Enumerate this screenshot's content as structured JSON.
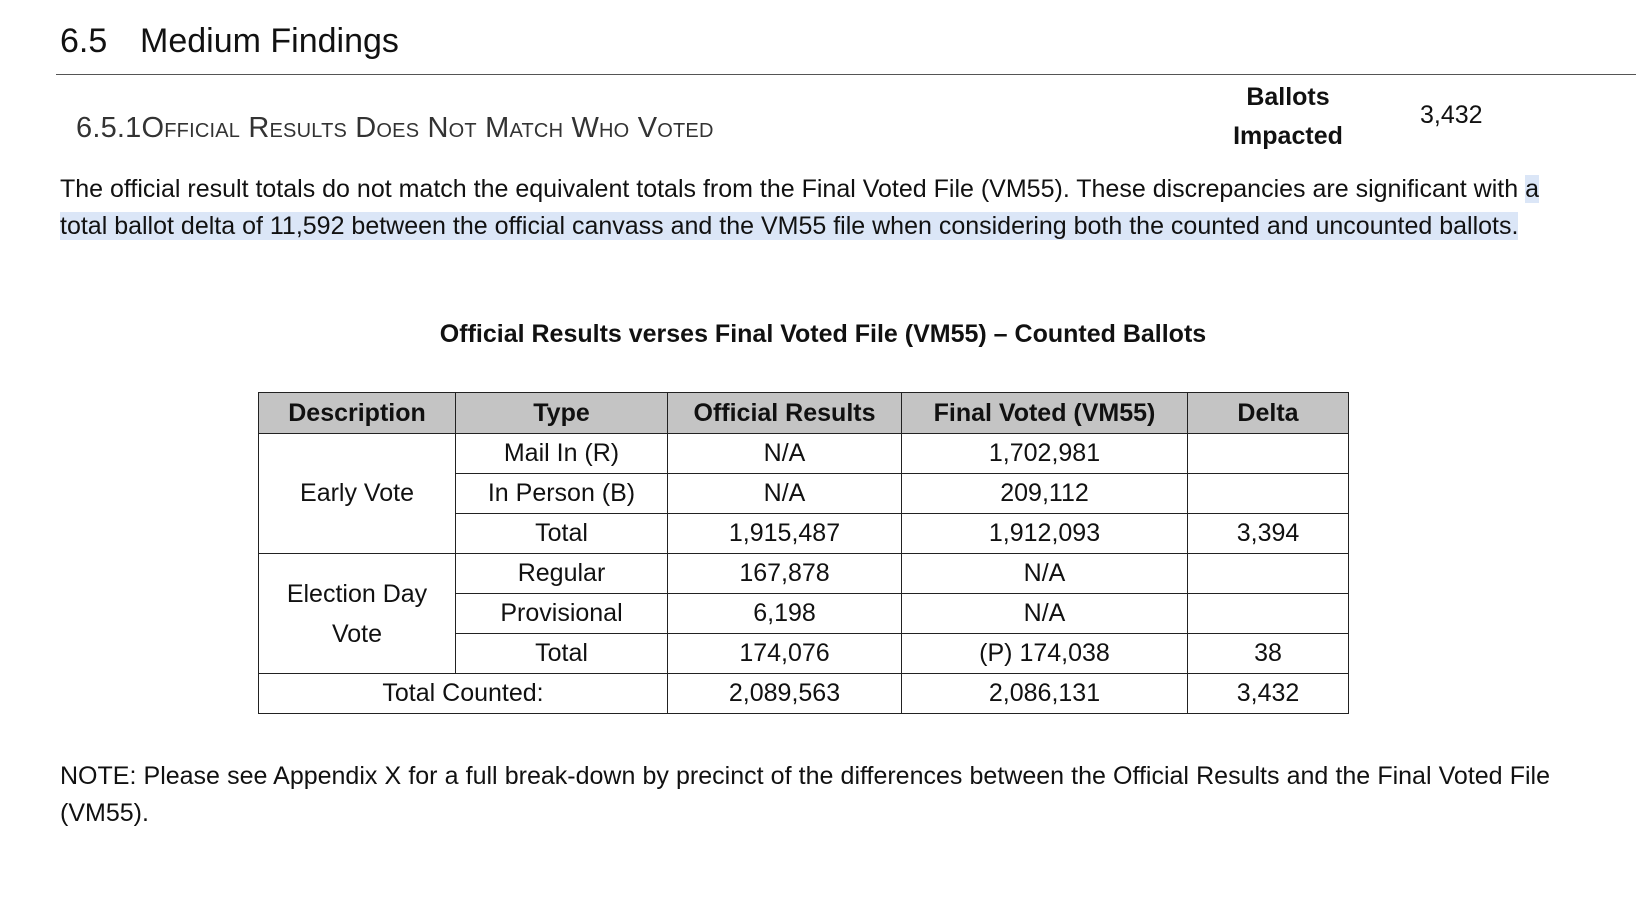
{
  "section": {
    "number": "6.5",
    "title": "Medium Findings"
  },
  "subsection": {
    "number": "6.5.1",
    "title": "Official Results Does Not Match Who Voted"
  },
  "impact": {
    "label_line1": "Ballots",
    "label_line2": "Impacted",
    "value": "3,432"
  },
  "paragraph": {
    "text_plain": "The official result totals do not match the equivalent totals from the Final Voted File (VM55). These discrepancies are significant with ",
    "text_highlighted": "a total ballot delta of 11,592 between the official canvass and the VM55 file when considering both the counted and uncounted ballots."
  },
  "table": {
    "title": "Official Results verses Final Voted File (VM55) – Counted Ballots",
    "headers": [
      "Description",
      "Type",
      "Official Results",
      "Final Voted (VM55)",
      "Delta"
    ],
    "groups": [
      {
        "description": "Early Vote",
        "rows": [
          {
            "type": "Mail In (R)",
            "official": "N/A",
            "vm55": "1,702,981",
            "delta": ""
          },
          {
            "type": "In Person (B)",
            "official": "N/A",
            "vm55": "209,112",
            "delta": ""
          },
          {
            "type": "Total",
            "official": "1,915,487",
            "vm55": "1,912,093",
            "delta": "3,394"
          }
        ]
      },
      {
        "description": "Election Day Vote",
        "rows": [
          {
            "type": "Regular",
            "official": "167,878",
            "vm55": "N/A",
            "delta": ""
          },
          {
            "type": "Provisional",
            "official": "6,198",
            "vm55": "N/A",
            "delta": ""
          },
          {
            "type": "Total",
            "official": "174,076",
            "vm55": "(P) 174,038",
            "delta": "38"
          }
        ]
      }
    ],
    "total": {
      "label": "Total Counted:",
      "official": "2,089,563",
      "vm55": "2,086,131",
      "delta": "3,432"
    }
  },
  "note": "NOTE: Please see Appendix X for a full break-down by precinct of the differences between the Official Results and the Final Voted File (VM55)."
}
